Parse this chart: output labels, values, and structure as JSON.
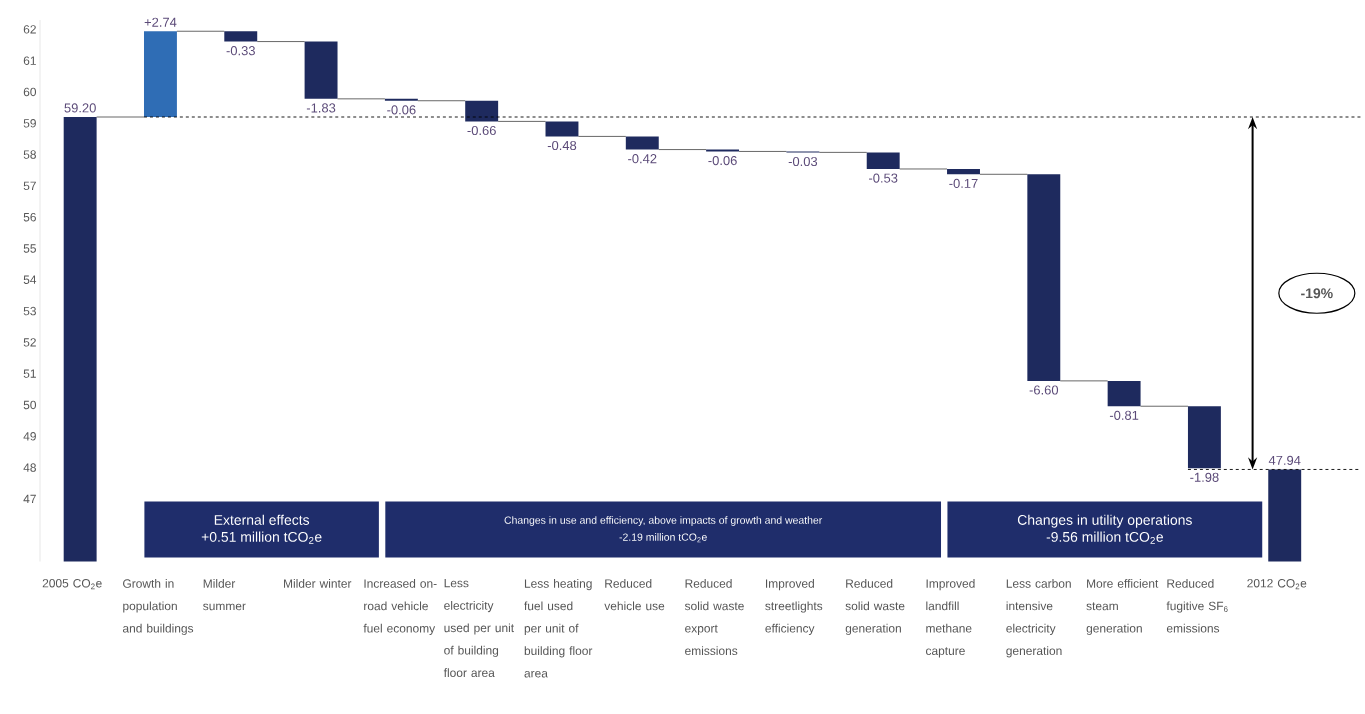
{
  "chart_data": {
    "type": "bar",
    "categories": [
      "2005 CO$_{2}$e",
      "Growth in population and buildings",
      "Milder summer",
      "Milder winter",
      "Increased on-road vehicle fuel economy",
      "Less electricity used per unit of building floor area",
      "Less heating fuel used per unit of building floor area",
      "Reduced vehicle use",
      "Reduced solid waste export emissions",
      "Improved streetlights efficiency",
      "Reduced solid waste generation",
      "Improved landfill methane capture",
      "Less carbon intensive electricity generation",
      "More efficient steam generation",
      "Reduced fugitive SF$_{6}$ emissions",
      "2012 CO$_{2}$e"
    ],
    "values": [
      59.2,
      2.74,
      -0.33,
      -1.83,
      -0.06,
      -0.66,
      -0.48,
      -0.42,
      -0.06,
      -0.03,
      -0.53,
      -0.17,
      -6.6,
      -0.81,
      -1.98,
      47.94
    ],
    "base": [
      null,
      59.2,
      61.94,
      61.61,
      59.78,
      59.72,
      59.06,
      58.58,
      58.16,
      58.1,
      58.07,
      57.54,
      57.37,
      50.77,
      49.96,
      null
    ],
    "colors": [
      "#1e2a5e",
      "#2f6db5",
      "#1e2a5e",
      "#1e2a5e",
      "#1e2a5e",
      "#1e2a5e",
      "#1e2a5e",
      "#1e2a5e",
      "#1e2a5e",
      "#1e2a5e",
      "#1e2a5e",
      "#1e2a5e",
      "#1e2a5e",
      "#1e2a5e",
      "#1e2a5e",
      "#1e2a5e"
    ],
    "value_labels": [
      "59.20",
      "+2.74",
      "-0.33",
      "-1.83",
      "-0.06",
      "-0.66",
      "-0.48",
      "-0.42",
      "-0.06",
      "-0.03",
      "-0.53",
      "-0.17",
      "-6.60",
      "-0.81",
      "-1.98",
      "47.94"
    ],
    "ylim": [
      45.0,
      62.3
    ],
    "yticks": [
      47,
      48,
      49,
      50,
      51,
      52,
      53,
      54,
      55,
      56,
      57,
      58,
      59,
      60,
      61,
      62
    ],
    "ref_lines": [
      {
        "axis": "y",
        "value": 59.2,
        "line_style": "dashed"
      },
      {
        "axis": "y",
        "value": 47.94,
        "line_style": "dashed"
      }
    ],
    "annotations": [
      "External effects",
      "+0.51 million tCO$_{2}$e",
      "Changes in use and efficiency, above impacts of growth and weather",
      "-2.19 million tCO$_{2}$e",
      "Changes in utility operations",
      "-9.56 million tCO$_{2}$e",
      "-19%"
    ]
  }
}
